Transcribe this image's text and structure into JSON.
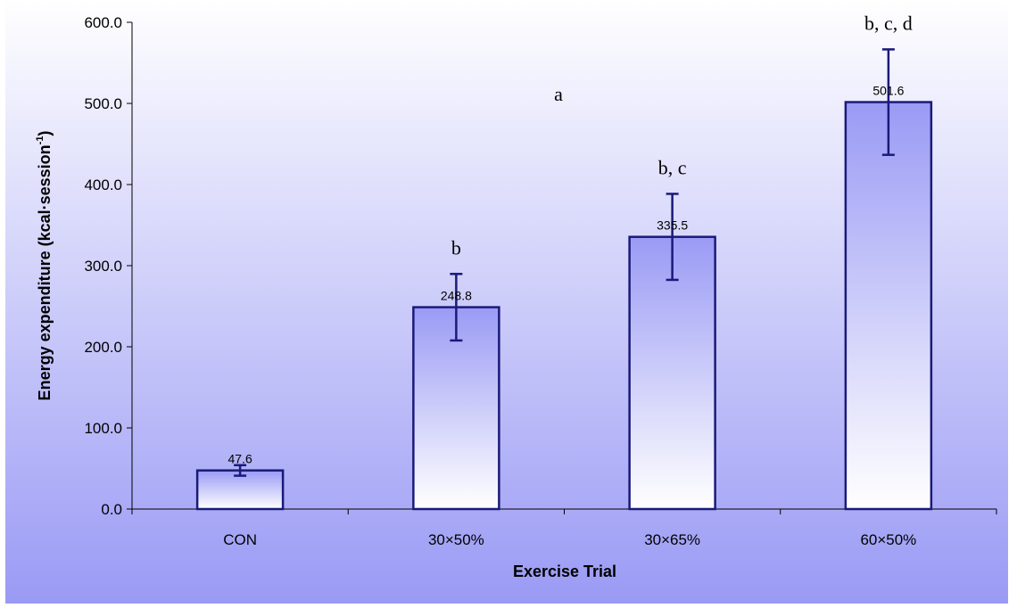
{
  "chart_data": {
    "type": "bar",
    "categories": [
      "CON",
      "30×50%",
      "30×65%",
      "60×50%"
    ],
    "values": [
      47.6,
      248.8,
      335.5,
      501.6
    ],
    "value_labels": [
      "47.6",
      "248.8",
      "335.5",
      "501.6"
    ],
    "error": [
      6.5,
      41.0,
      53.0,
      65.0
    ],
    "significance_labels": [
      "",
      "b",
      "b, c",
      "b, c, d"
    ],
    "annotation": "a",
    "xlabel": "Exercise Trial",
    "ylabel_main": "Energy expenditure (kcal·session",
    "ylabel_sup": "-1",
    "ylabel_close": ")",
    "ylim": [
      0,
      600
    ],
    "yticks": [
      0,
      100,
      200,
      300,
      400,
      500,
      600
    ],
    "ytick_labels": [
      "0.0",
      "100.0",
      "200.0",
      "300.0",
      "400.0",
      "500.0",
      "600.0"
    ],
    "grid": false,
    "legend": "none"
  },
  "colors": {
    "background_top": "#ffffff",
    "background_bottom": "#9a9af5",
    "bar_top": "#9a9af5",
    "bar_bottom": "#ffffff",
    "bar_stroke": "#1a1a7a",
    "error_bar": "#1a1a7a",
    "axis": "#000000"
  }
}
